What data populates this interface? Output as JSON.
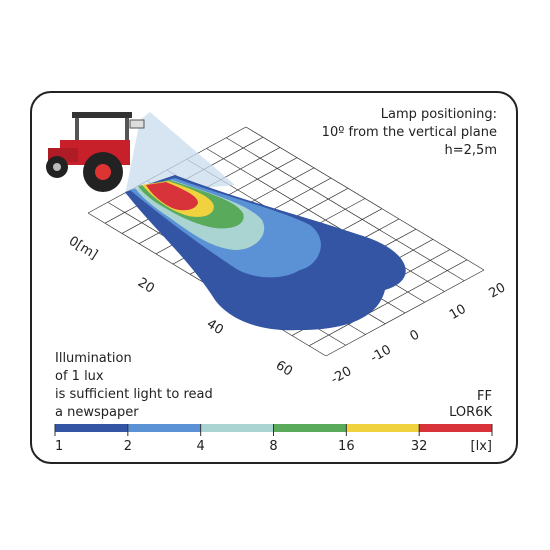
{
  "header": {
    "lines": [
      "Lamp positioning:",
      "10º from the vertical plane",
      "h=2,5m"
    ]
  },
  "distance_axis": {
    "labels": [
      "0[m]",
      "20",
      "40",
      "60"
    ]
  },
  "lateral_axis": {
    "labels": [
      "20",
      "10",
      "0",
      "-10",
      "-20"
    ]
  },
  "note": {
    "lines": [
      "Illumination",
      "of 1 lux",
      "is sufficient light to read",
      "a newspaper"
    ]
  },
  "product": {
    "lines": [
      "FF",
      "LOR6K"
    ]
  },
  "scale": {
    "labels": [
      "1",
      "2",
      "4",
      "8",
      "16",
      "32"
    ],
    "unit": "[lx]",
    "colors": [
      "#3455a4",
      "#5b92d6",
      "#a9d4d2",
      "#5aaa5c",
      "#f0d23e",
      "#d8323a"
    ]
  }
}
